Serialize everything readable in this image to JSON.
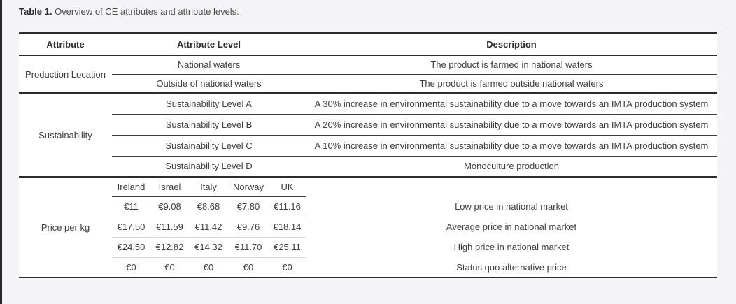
{
  "caption": {
    "label": "Table 1.",
    "text": " Overview of CE attributes and attribute levels."
  },
  "table": {
    "headers": {
      "attribute": "Attribute",
      "attribute_level": "Attribute Level",
      "description": "Description"
    },
    "sections": [
      {
        "attribute": "Production Location",
        "rows": [
          {
            "level": "National waters",
            "description": "The product is farmed in national waters"
          },
          {
            "level": "Outside of national waters",
            "description": "The product is farmed outside national waters"
          }
        ]
      },
      {
        "attribute": "Sustainability",
        "rows": [
          {
            "level": "Sustainability Level A",
            "description": "A 30% increase in environmental sustainability due to a move towards an IMTA production system"
          },
          {
            "level": "Sustainability Level B",
            "description": "A 20% increase in environmental sustainability due to a move towards an IMTA production system"
          },
          {
            "level": "Sustainability Level C",
            "description": "A 10% increase in environmental sustainability due to a move towards an IMTA production system"
          },
          {
            "level": "Sustainability Level D",
            "description": "Monoculture production"
          }
        ]
      }
    ],
    "price_section": {
      "attribute": "Price per kg",
      "countries": [
        "Ireland",
        "Israel",
        "Italy",
        "Norway",
        "UK"
      ],
      "rows": [
        {
          "values": [
            "€11",
            "€9.08",
            "€8.68",
            "€7.80",
            "€11.16"
          ],
          "description": "Low price in national market"
        },
        {
          "values": [
            "€17.50",
            "€11.59",
            "€11.42",
            "€9.76",
            "€18.14"
          ],
          "description": "Average price in national market"
        },
        {
          "values": [
            "€24.50",
            "€12.82",
            "€14.32",
            "€11.70",
            "€25.11"
          ],
          "description": "High price in national market"
        },
        {
          "values": [
            "€0",
            "€0",
            "€0",
            "€0",
            "€0"
          ],
          "description": "Status quo alternative price"
        }
      ]
    }
  }
}
